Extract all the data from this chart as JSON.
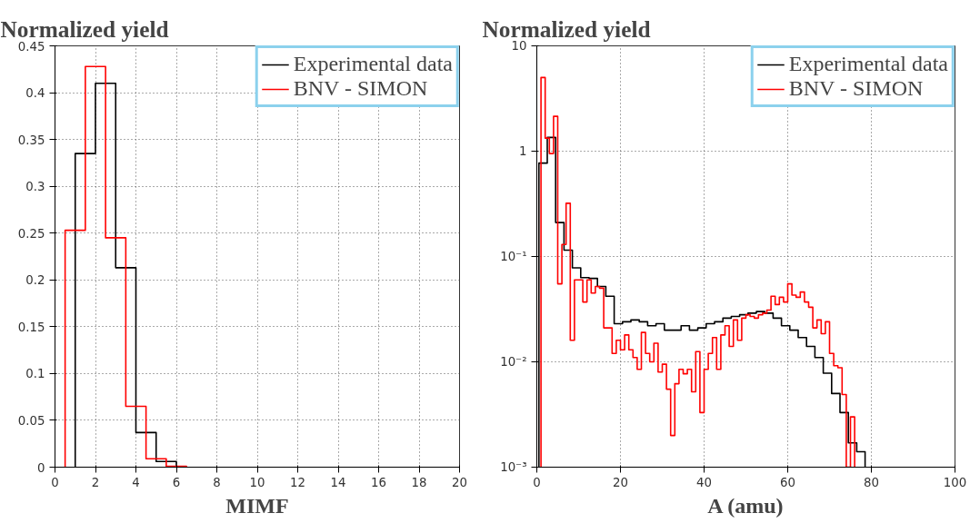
{
  "chart_data": [
    {
      "type": "step",
      "title": "Normalized yield",
      "xlabel": "MIMF",
      "xlim": [
        0,
        20
      ],
      "xticks": [
        0,
        2,
        4,
        6,
        8,
        10,
        12,
        14,
        16,
        18,
        20
      ],
      "ylim": [
        0,
        0.45
      ],
      "yticks": [
        0,
        0.05,
        0.1,
        0.15,
        0.2,
        0.25,
        0.3,
        0.35,
        0.4,
        0.45
      ],
      "grid": true,
      "legend": "top right",
      "series": [
        {
          "name": "Experimental data",
          "color": "#000000",
          "x": [
            1,
            1,
            2,
            3,
            4,
            5,
            6
          ],
          "values": [
            0,
            0.335,
            0.41,
            0.213,
            0.037,
            0.006,
            0
          ]
        },
        {
          "name": "BNV - SIMON",
          "color": "#ff0000",
          "x": [
            0.5,
            0.5,
            1.5,
            2.5,
            3.5,
            4.5,
            5.5,
            6.5
          ],
          "values": [
            0,
            0.253,
            0.428,
            0.245,
            0.065,
            0.009,
            0.001,
            0
          ]
        }
      ]
    },
    {
      "type": "step",
      "title": "Normalized yield",
      "xlabel": "A (amu)",
      "xlim": [
        0,
        100
      ],
      "xticks": [
        0,
        20,
        40,
        60,
        80,
        100
      ],
      "ylim": [
        0.001,
        10
      ],
      "yticks": [
        {
          "value": 0.001,
          "label": "10⁻³"
        },
        {
          "value": 0.01,
          "label": "10⁻²"
        },
        {
          "value": 0.1,
          "label": "10⁻¹"
        },
        1,
        10
      ],
      "log": "y",
      "grid": true,
      "legend": "top right",
      "series": [
        {
          "name": "Experimental data",
          "color": "#000000",
          "x": [
            0.5,
            0.5,
            2.5,
            4.5,
            6.5,
            8.5,
            10.5,
            12.5,
            14.5,
            16.5,
            18.5,
            20.5,
            22.5,
            24.5,
            26.5,
            28.5,
            30.5,
            32.5,
            34.5,
            36.5,
            38.5,
            40.5,
            42.5,
            44.5,
            46.5,
            48.5,
            50.5,
            52.5,
            54.5,
            56.5,
            58.5,
            60.5,
            62.5,
            64.5,
            66.5,
            68.5,
            70.5,
            72.5,
            74.5,
            76.5,
            78.5
          ],
          "values": [
            0.001,
            0.77,
            1.35,
            0.21,
            0.115,
            0.078,
            0.063,
            0.062,
            0.052,
            0.042,
            0.023,
            0.024,
            0.025,
            0.024,
            0.022,
            0.023,
            0.02,
            0.02,
            0.022,
            0.02,
            0.021,
            0.023,
            0.024,
            0.026,
            0.027,
            0.028,
            0.029,
            0.03,
            0.029,
            0.026,
            0.022,
            0.02,
            0.017,
            0.014,
            0.011,
            0.0078,
            0.005,
            0.0033,
            0.0017,
            0.0014,
            0.001
          ]
        },
        {
          "name": "BNV - SIMON",
          "color": "#ff0000",
          "x": [
            1,
            1,
            2,
            3,
            4,
            5,
            6,
            7,
            8,
            9,
            10,
            11,
            12,
            13,
            14,
            15,
            16,
            17,
            18,
            19,
            20,
            21,
            22,
            23,
            24,
            25,
            26,
            27,
            28,
            29,
            30,
            31,
            32,
            33,
            34,
            35,
            36,
            37,
            38,
            39,
            40,
            41,
            42,
            43,
            44,
            45,
            46,
            47,
            48,
            49,
            50,
            51,
            52,
            53,
            54,
            55,
            56,
            57,
            58,
            59,
            60,
            61,
            62,
            63,
            64,
            65,
            66,
            67,
            68,
            69,
            70,
            71,
            72,
            73,
            74,
            75,
            76
          ],
          "values": [
            0.001,
            5.0,
            1.33,
            0.95,
            2.14,
            0.055,
            0.13,
            0.32,
            0.016,
            0.06,
            0.06,
            0.037,
            0.06,
            0.045,
            0.052,
            0.05,
            0.021,
            0.021,
            0.012,
            0.016,
            0.013,
            0.018,
            0.013,
            0.011,
            0.0085,
            0.019,
            0.012,
            0.01,
            0.015,
            0.008,
            0.0095,
            0.0055,
            0.002,
            0.0062,
            0.0085,
            0.0077,
            0.0085,
            0.0052,
            0.0125,
            0.0033,
            0.0085,
            0.012,
            0.017,
            0.0085,
            0.018,
            0.022,
            0.014,
            0.025,
            0.016,
            0.026,
            0.028,
            0.027,
            0.026,
            0.028,
            0.029,
            0.031,
            0.042,
            0.035,
            0.041,
            0.037,
            0.055,
            0.043,
            0.041,
            0.046,
            0.037,
            0.033,
            0.021,
            0.025,
            0.0185,
            0.024,
            0.012,
            0.0092,
            0.0088,
            0.0049,
            0.001,
            0.003,
            0.001
          ]
        }
      ]
    }
  ]
}
